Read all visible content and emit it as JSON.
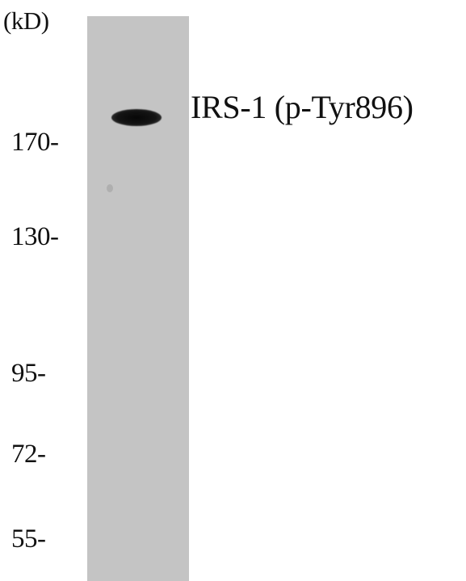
{
  "blot": {
    "unit_label": "(kD)",
    "band_label": "IRS-1 (p-Tyr896)",
    "lane_color": "#c4c4c4",
    "band_color": "#0a0a0a",
    "markers": [
      "170-",
      "130-",
      "95-",
      "72-",
      "55-"
    ]
  }
}
